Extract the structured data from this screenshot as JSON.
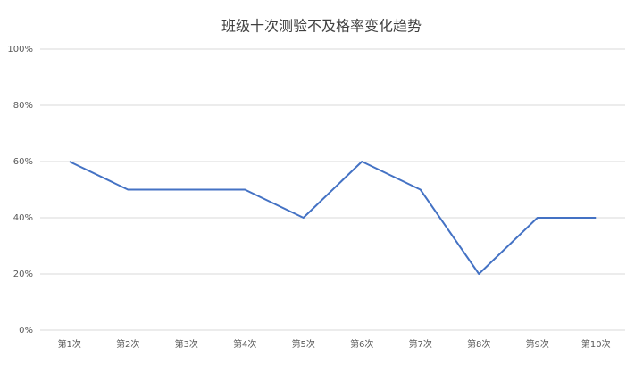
{
  "chart_data": {
    "type": "line",
    "title": "班级十次测验不及格率变化趋势",
    "categories": [
      "第1次",
      "第2次",
      "第3次",
      "第4次",
      "第5次",
      "第6次",
      "第7次",
      "第8次",
      "第9次",
      "第10次"
    ],
    "series": [
      {
        "name": "不及格率",
        "color": "#4472c4",
        "values": [
          60,
          50,
          50,
          50,
          40,
          60,
          50,
          20,
          40,
          40
        ]
      }
    ],
    "ylim": [
      0,
      100
    ],
    "yticks": [
      {
        "value": 0,
        "label": "0%"
      },
      {
        "value": 20,
        "label": "20%"
      },
      {
        "value": 40,
        "label": "40%"
      },
      {
        "value": 60,
        "label": "60%"
      },
      {
        "value": 80,
        "label": "80%"
      },
      {
        "value": 100,
        "label": "100%"
      }
    ],
    "grid": true
  }
}
